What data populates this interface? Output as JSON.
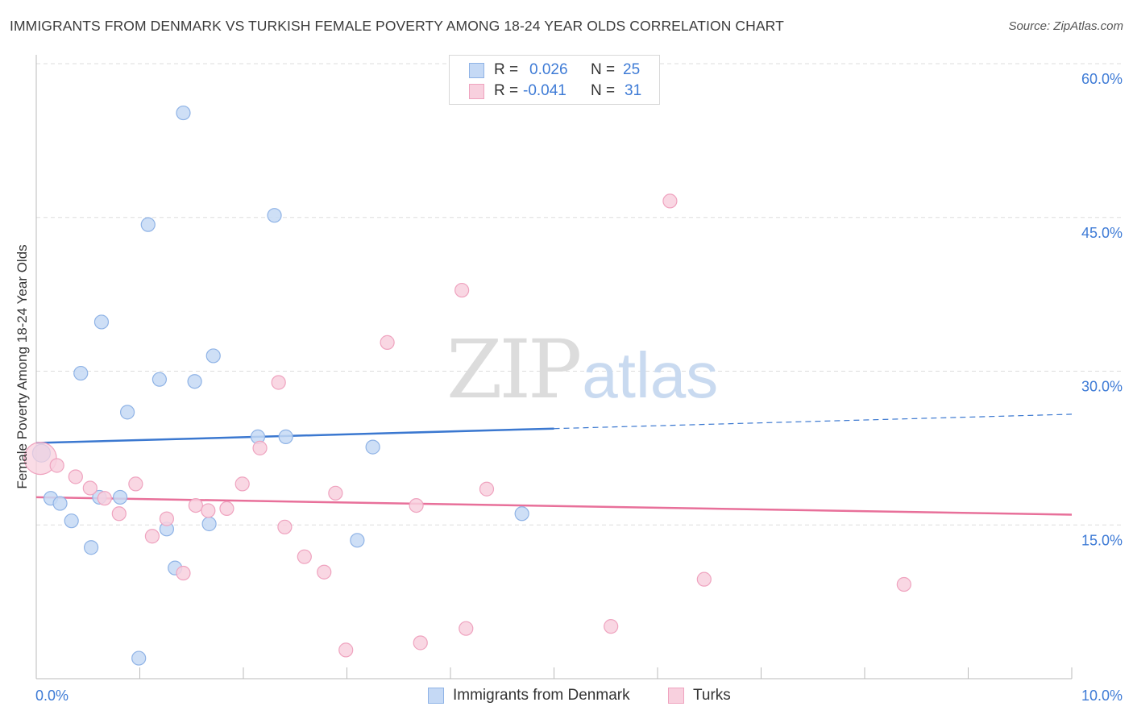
{
  "title": "IMMIGRANTS FROM DENMARK VS TURKISH FEMALE POVERTY AMONG 18-24 YEAR OLDS CORRELATION CHART",
  "source": "Source: ZipAtlas.com",
  "watermark": {
    "zip": "ZIP",
    "atlas": "atlas"
  },
  "colors": {
    "blue": "#3b78d0",
    "blue_fill": "#c5d9f5",
    "blue_stroke": "#8fb3e6",
    "pink": "#e8709a",
    "pink_fill": "#f8d0de",
    "pink_stroke": "#efa3bf",
    "tick": "#3e7bd6",
    "grid": "#dddddd"
  },
  "legend": {
    "rows": [
      {
        "r_label": "R =",
        "r_value": "0.026",
        "n_label": "N =",
        "n_value": "25"
      },
      {
        "r_label": "R =",
        "r_value": "-0.041",
        "n_label": "N =",
        "n_value": "31"
      }
    ]
  },
  "bottom_legend": [
    "Immigrants from Denmark",
    "Turks"
  ],
  "chart_data": {
    "type": "scatter",
    "title": "IMMIGRANTS FROM DENMARK VS TURKISH FEMALE POVERTY AMONG 18-24 YEAR OLDS CORRELATION CHART",
    "xlabel": "",
    "ylabel": "Female Poverty Among 18-24 Year Olds",
    "xlim": [
      0,
      10
    ],
    "ylim": [
      0,
      60
    ],
    "x_tick_labels": [
      "0.0%",
      "10.0%"
    ],
    "y_ticks": [
      15,
      30,
      45,
      60
    ],
    "y_tick_labels": [
      "15.0%",
      "30.0%",
      "45.0%",
      "60.0%"
    ],
    "grid": true,
    "series": [
      {
        "name": "Immigrants from Denmark",
        "points": [
          [
            0.05,
            22.0
          ],
          [
            0.14,
            17.6
          ],
          [
            0.23,
            17.1
          ],
          [
            0.34,
            15.4
          ],
          [
            0.43,
            29.8
          ],
          [
            0.53,
            12.8
          ],
          [
            0.63,
            34.8
          ],
          [
            0.61,
            17.7
          ],
          [
            0.81,
            17.7
          ],
          [
            0.88,
            26.0
          ],
          [
            0.99,
            2.0
          ],
          [
            1.08,
            44.3
          ],
          [
            1.19,
            29.2
          ],
          [
            1.26,
            14.6
          ],
          [
            1.34,
            10.8
          ],
          [
            1.42,
            55.2
          ],
          [
            1.53,
            29.0
          ],
          [
            1.67,
            15.1
          ],
          [
            1.71,
            31.5
          ],
          [
            2.14,
            23.6
          ],
          [
            2.3,
            45.2
          ],
          [
            2.41,
            23.6
          ],
          [
            3.1,
            13.5
          ],
          [
            3.25,
            22.6
          ],
          [
            4.69,
            16.1
          ]
        ],
        "trend": {
          "x": [
            0,
            10
          ],
          "y": [
            23.0,
            25.8
          ],
          "solid_until_x": 5.0
        }
      },
      {
        "name": "Turks",
        "points": [
          [
            0.04,
            21.5
          ],
          [
            0.2,
            20.8
          ],
          [
            0.38,
            19.7
          ],
          [
            0.52,
            18.6
          ],
          [
            0.66,
            17.6
          ],
          [
            0.8,
            16.1
          ],
          [
            0.96,
            19.0
          ],
          [
            1.12,
            13.9
          ],
          [
            1.26,
            15.6
          ],
          [
            1.42,
            10.3
          ],
          [
            1.54,
            16.9
          ],
          [
            1.66,
            16.4
          ],
          [
            1.84,
            16.6
          ],
          [
            1.99,
            19.0
          ],
          [
            2.16,
            22.5
          ],
          [
            2.34,
            28.9
          ],
          [
            2.4,
            14.8
          ],
          [
            2.59,
            11.9
          ],
          [
            2.78,
            10.4
          ],
          [
            2.89,
            18.1
          ],
          [
            2.99,
            2.8
          ],
          [
            3.39,
            32.8
          ],
          [
            3.67,
            16.9
          ],
          [
            3.71,
            3.5
          ],
          [
            4.15,
            4.9
          ],
          [
            4.11,
            37.9
          ],
          [
            4.35,
            18.5
          ],
          [
            5.55,
            5.1
          ],
          [
            6.12,
            46.6
          ],
          [
            6.45,
            9.7
          ],
          [
            8.38,
            9.2
          ]
        ],
        "trend": {
          "x": [
            0,
            10
          ],
          "y": [
            17.7,
            16.0
          ],
          "solid_until_x": 10.0
        }
      }
    ]
  }
}
